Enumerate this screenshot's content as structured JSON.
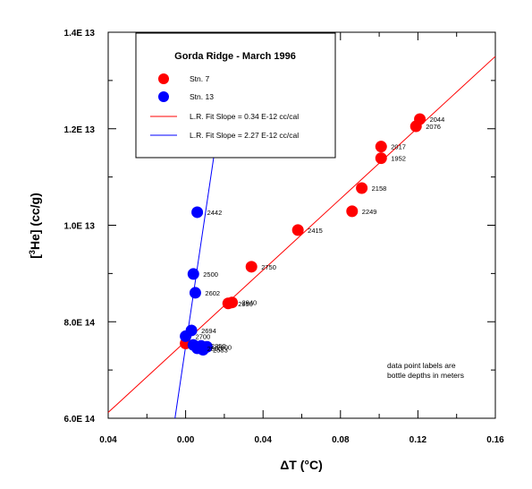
{
  "chart_data": {
    "type": "scatter",
    "title": "Gorda Ridge - March 1996",
    "xlabel": "ΔT (°C)",
    "ylabel": "[3He] (cc/g)",
    "xlim": [
      -0.04,
      0.16
    ],
    "ylim": [
      6e-14,
      1.4e-13
    ],
    "x_ticks": [
      -0.04,
      0.0,
      0.04,
      0.08,
      0.12,
      0.16
    ],
    "x_tick_labels": [
      "0.04",
      "0.00",
      "0.04",
      "0.08",
      "0.12",
      "0.16"
    ],
    "y_ticks": [
      6e-14,
      8e-14,
      1e-13,
      1.2e-13,
      1.4e-13
    ],
    "y_tick_labels": [
      "6.0E 14",
      "8.0E 14",
      "1.0E 13",
      "1.2E 13",
      "1.4E 13"
    ],
    "grid": false,
    "legend_placement": "top-left",
    "note": [
      "data point labels are",
      "bottle depths in meters"
    ],
    "series": [
      {
        "name": "Stn. 7",
        "color": "#ff0000",
        "points": [
          {
            "x": 0.0,
            "y": 7.55e-14,
            "label": ""
          },
          {
            "x": 0.022,
            "y": 8.38e-14,
            "label": "2950"
          },
          {
            "x": 0.024,
            "y": 8.4e-14,
            "label": "2940"
          },
          {
            "x": 0.034,
            "y": 9.14e-14,
            "label": "2750"
          },
          {
            "x": 0.058,
            "y": 9.9e-14,
            "label": "2415"
          },
          {
            "x": 0.086,
            "y": 1.029e-13,
            "label": "2249"
          },
          {
            "x": 0.091,
            "y": 1.077e-13,
            "label": "2158"
          },
          {
            "x": 0.101,
            "y": 1.139e-13,
            "label": "1952"
          },
          {
            "x": 0.101,
            "y": 1.163e-13,
            "label": "2017"
          },
          {
            "x": 0.119,
            "y": 1.205e-13,
            "label": "2076"
          },
          {
            "x": 0.121,
            "y": 1.22e-13,
            "label": "2044"
          }
        ]
      },
      {
        "name": "Stn. 13",
        "color": "#0000ff",
        "points": [
          {
            "x": 0.006,
            "y": 1.027e-13,
            "label": "2442"
          },
          {
            "x": 0.004,
            "y": 8.99e-14,
            "label": "2500"
          },
          {
            "x": 0.005,
            "y": 8.6e-14,
            "label": "2602"
          },
          {
            "x": 0.003,
            "y": 7.82e-14,
            "label": "2694"
          },
          {
            "x": 0.0,
            "y": 7.7e-14,
            "label": "2700"
          },
          {
            "x": 0.004,
            "y": 7.52e-14,
            "label": ""
          },
          {
            "x": 0.006,
            "y": 7.45e-14,
            "label": "2800"
          },
          {
            "x": 0.008,
            "y": 7.5e-14,
            "label": "2850"
          },
          {
            "x": 0.011,
            "y": 7.48e-14,
            "label": "2900"
          },
          {
            "x": 0.009,
            "y": 7.42e-14,
            "label": "2533"
          }
        ]
      }
    ],
    "fits": [
      {
        "name": "L.R. Fit Slope = 0.34 E-12 cc/cal",
        "color": "#ff0000",
        "x0": -0.04,
        "y0": 6.12e-14,
        "x1": 0.16,
        "y1": 1.35e-13
      },
      {
        "name": "L.R. Fit Slope = 2.27 E-12 cc/cal",
        "color": "#0000ff",
        "x0": -0.0055,
        "y0": 6e-14,
        "x1": 0.0167,
        "y1": 1.2e-13
      }
    ]
  }
}
